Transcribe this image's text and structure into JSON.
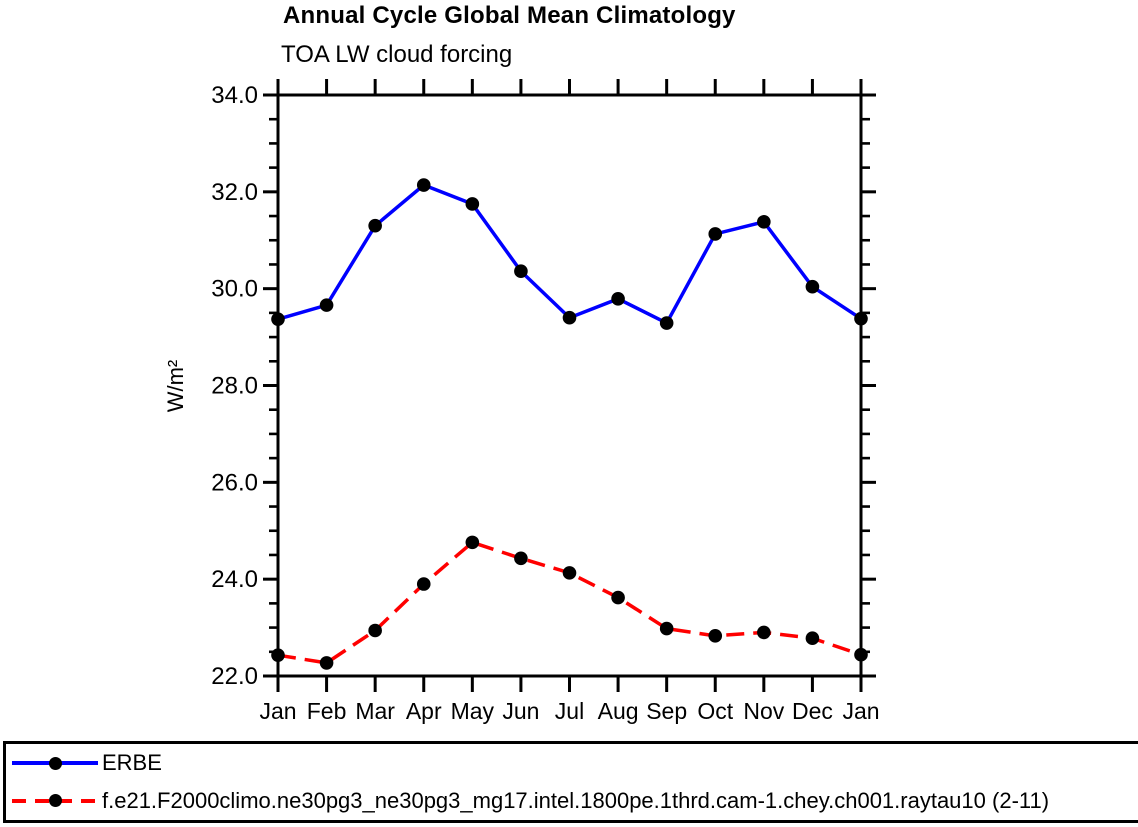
{
  "chart_data": {
    "type": "line",
    "title": "Annual Cycle Global Mean Climatology",
    "subtitle": "TOA LW cloud forcing",
    "xlabel": "",
    "ylabel": "W/m²",
    "categories": [
      "Jan",
      "Feb",
      "Mar",
      "Apr",
      "May",
      "Jun",
      "Jul",
      "Aug",
      "Sep",
      "Oct",
      "Nov",
      "Dec",
      "Jan"
    ],
    "ylim": [
      22.0,
      34.0
    ],
    "ytick_major_interval": 2.0,
    "ytick_minor_interval": 0.5,
    "ytick_labels": [
      "22.0",
      "24.0",
      "26.0",
      "28.0",
      "30.0",
      "32.0",
      "34.0"
    ],
    "grid": false,
    "legend_position": "bottom-outside",
    "series": [
      {
        "name": "ERBE",
        "color": "#0000ff",
        "line_style": "solid",
        "marker": "filled-circle",
        "marker_color": "#000000",
        "values": [
          29.37,
          29.66,
          31.3,
          32.14,
          31.75,
          30.36,
          29.4,
          29.79,
          29.29,
          31.13,
          31.38,
          30.04,
          29.38
        ]
      },
      {
        "name": "f.e21.F2000climo.ne30pg3_ne30pg3_mg17.intel.1800pe.1thrd.cam-1.chey.ch001.raytau10 (2-11)",
        "color": "#ff0000",
        "line_style": "dashed",
        "marker": "filled-circle",
        "marker_color": "#000000",
        "values": [
          22.43,
          22.27,
          22.94,
          23.9,
          24.76,
          24.43,
          24.13,
          23.62,
          22.98,
          22.83,
          22.9,
          22.78,
          22.44
        ]
      }
    ]
  },
  "colors": {
    "axis": "#000000",
    "erbe_line": "#0000ff",
    "model_line": "#ff0000",
    "marker": "#000000"
  }
}
